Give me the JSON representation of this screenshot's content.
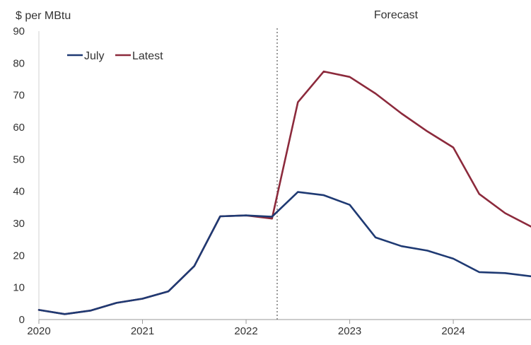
{
  "chart_data": {
    "type": "line",
    "title": "",
    "ylabel": "$ per MBtu",
    "xlabel": "",
    "ylim": [
      0,
      90
    ],
    "xlim": [
      2020,
      2024.75
    ],
    "yticks": [
      "0",
      "10",
      "20",
      "30",
      "40",
      "50",
      "60",
      "70",
      "80",
      "90"
    ],
    "xticks": [
      "2020",
      "2021",
      "2022",
      "2023",
      "2024"
    ],
    "grid": false,
    "legend": "top-left",
    "forecast_start": 2022.3,
    "annotation": "Forecast",
    "colors": {
      "July": "#1f3a73",
      "Latest": "#8c2a3c",
      "forecast_line": "#777777"
    },
    "series": [
      {
        "name": "July",
        "x": [
          2020,
          2020.25,
          2020.5,
          2020.75,
          2021,
          2021.25,
          2021.5,
          2021.75,
          2022,
          2022.25,
          2022.5,
          2022.75,
          2023,
          2023.25,
          2023.5,
          2023.75,
          2024,
          2024.25,
          2024.5,
          2024.75
        ],
        "values": [
          3,
          1.7,
          2.8,
          5.2,
          6.5,
          8.8,
          16.7,
          32.2,
          32.5,
          32.1,
          39.8,
          38.8,
          35.8,
          25.6,
          22.9,
          21.5,
          19.0,
          14.8,
          14.5,
          13.5
        ]
      },
      {
        "name": "Latest",
        "x": [
          2020,
          2020.25,
          2020.5,
          2020.75,
          2021,
          2021.25,
          2021.5,
          2021.75,
          2022,
          2022.25,
          2022.5,
          2022.75,
          2023,
          2023.25,
          2023.5,
          2023.75,
          2024,
          2024.25,
          2024.5,
          2024.75
        ],
        "values": [
          3,
          1.7,
          2.8,
          5.2,
          6.5,
          8.8,
          16.7,
          32.2,
          32.5,
          31.5,
          67.8,
          77.4,
          75.7,
          70.5,
          64.3,
          58.7,
          53.7,
          39.2,
          33.2,
          29.0
        ]
      }
    ]
  }
}
